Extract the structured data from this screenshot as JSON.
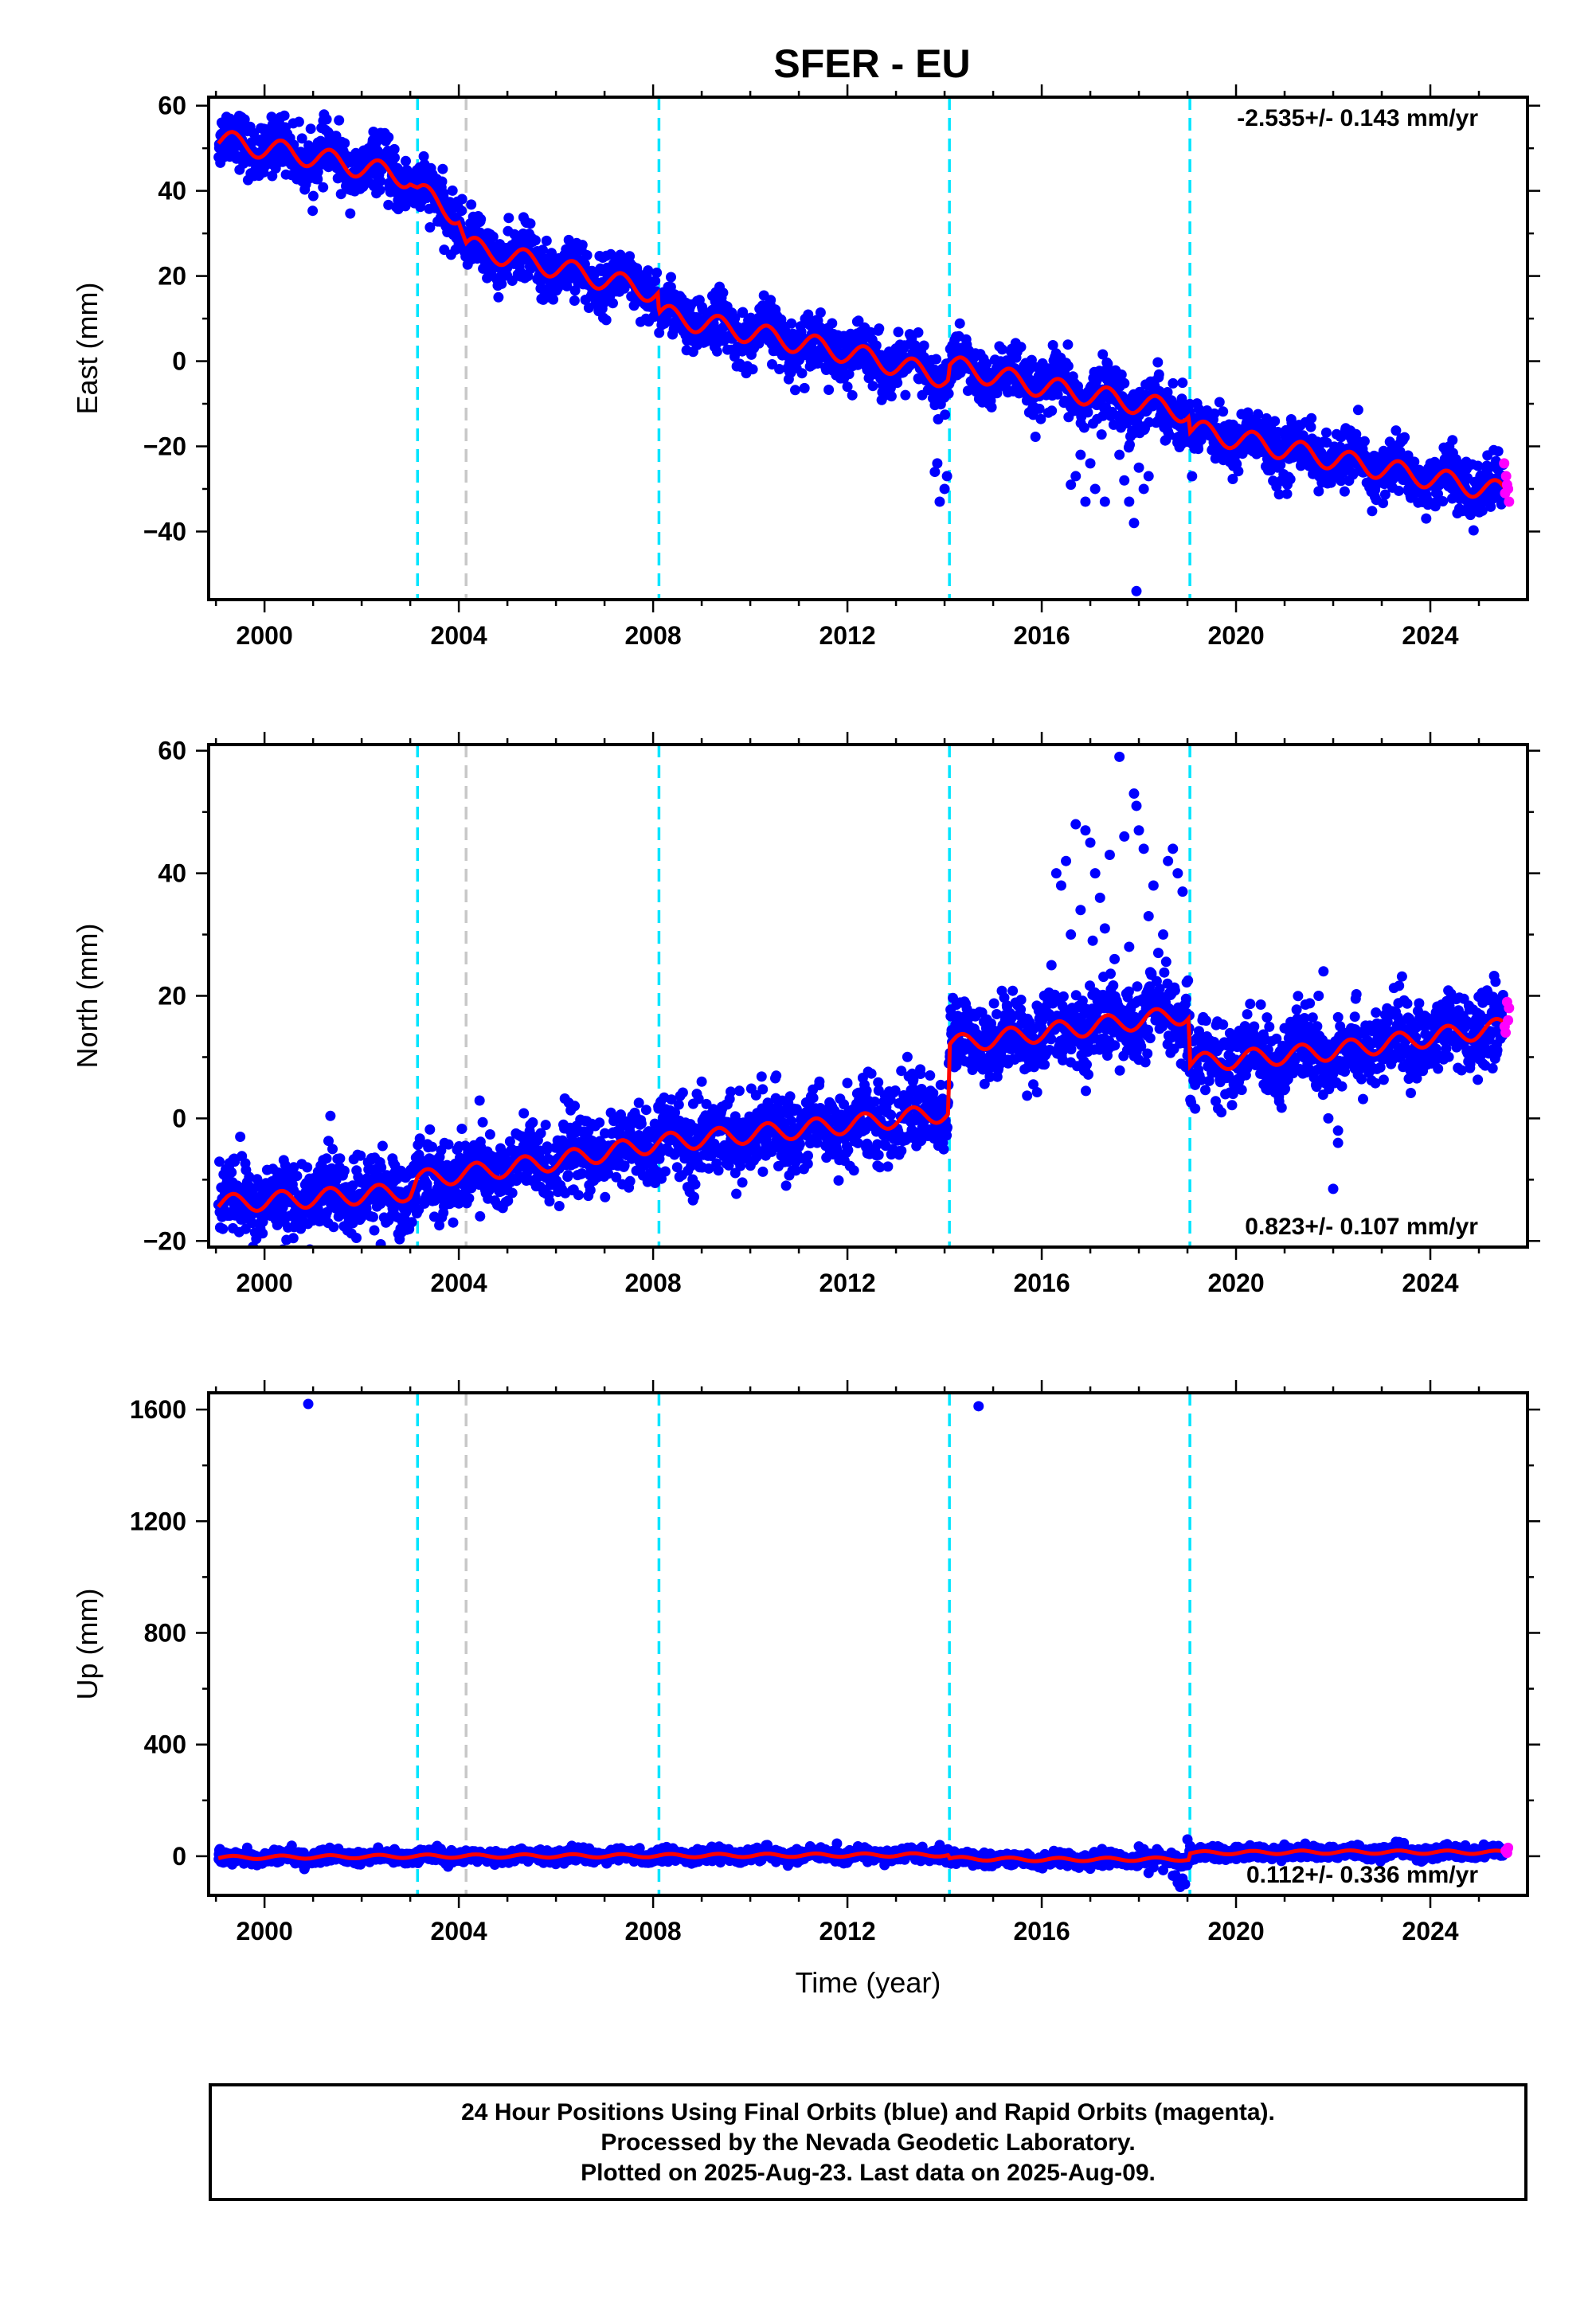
{
  "title": "SFER - EU",
  "footer": {
    "line1": "24 Hour Positions Using Final Orbits (blue) and Rapid Orbits (magenta).",
    "line2": "Processed by the Nevada Geodetic Laboratory.",
    "line3": "Plotted on 2025-Aug-23. Last data on 2025-Aug-09."
  },
  "colors": {
    "final_points": "#0000ff",
    "rapid_points": "#ff00ff",
    "model": "#ff0000",
    "equipment_change": "#00e5ff",
    "other_event": "#c8c8c8"
  },
  "chart_data": [
    {
      "type": "scatter",
      "component": "east",
      "ylabel": "East (mm)",
      "xlabel": "",
      "xlim": [
        1998.85,
        2026.0
      ],
      "ylim": [
        -56,
        62
      ],
      "xticks": [
        2000,
        2004,
        2008,
        2012,
        2016,
        2020,
        2024
      ],
      "yticks": [
        -40,
        -20,
        0,
        20,
        40,
        60
      ],
      "rate_text": "-2.535+/- 0.143 mm/yr",
      "rate_position": "top-right",
      "equipment_changes": [
        2003.15,
        2008.12,
        2014.1,
        2019.05
      ],
      "other_events": [
        2004.15
      ],
      "model_series": {
        "name": "model",
        "x": [
          1999.0,
          2001.0,
          2003.0,
          2003.15,
          2004.0,
          2004.15,
          2006.0,
          2008.1,
          2008.12,
          2012.0,
          2014.08,
          2014.1,
          2016.0,
          2019.03,
          2019.05,
          2022.0,
          2025.6
        ],
        "y": [
          52,
          48,
          43,
          40,
          34,
          27,
          22,
          16,
          11,
          2,
          -4,
          -1,
          -6,
          -12,
          -16,
          -23,
          -31
        ],
        "seasonal_amplitude": 2.5,
        "noise": 1.2
      },
      "point_series": {
        "name": "final",
        "density_per_year": 120,
        "scatter": 2.0
      },
      "outliers": [
        [
          2013.8,
          -26
        ],
        [
          2013.9,
          -33
        ],
        [
          2013.85,
          -24
        ],
        [
          2014.05,
          -27
        ],
        [
          2014.0,
          -30
        ],
        [
          2016.7,
          -27
        ],
        [
          2016.9,
          -33
        ],
        [
          2017.1,
          -30
        ],
        [
          2016.8,
          -22
        ],
        [
          2017.0,
          -24
        ],
        [
          2017.7,
          -28
        ],
        [
          2017.8,
          -33
        ],
        [
          2017.9,
          -38
        ],
        [
          2017.95,
          -54
        ],
        [
          2018.0,
          -25
        ],
        [
          2017.6,
          -22
        ],
        [
          2018.1,
          -30
        ],
        [
          2018.2,
          -27
        ],
        [
          2017.3,
          -33
        ],
        [
          2016.6,
          -29
        ],
        [
          2012.1,
          -8
        ],
        [
          2012.0,
          -6
        ]
      ],
      "rapid_points": [
        [
          2025.52,
          -24
        ],
        [
          2025.56,
          -27
        ],
        [
          2025.6,
          -30
        ],
        [
          2025.62,
          -33
        ],
        [
          2025.58,
          -29
        ],
        [
          2025.54,
          -31
        ]
      ]
    },
    {
      "type": "scatter",
      "component": "north",
      "ylabel": "North (mm)",
      "xlabel": "",
      "xlim": [
        1998.85,
        2026.0
      ],
      "ylim": [
        -21,
        61
      ],
      "xticks": [
        2000,
        2004,
        2008,
        2012,
        2016,
        2020,
        2024
      ],
      "yticks": [
        -20,
        0,
        20,
        40,
        60
      ],
      "rate_text": "0.823+/- 0.107 mm/yr",
      "rate_position": "bottom-right",
      "equipment_changes": [
        2003.15,
        2008.12,
        2014.1,
        2019.05
      ],
      "other_events": [
        2004.15
      ],
      "model_series": {
        "name": "model",
        "x": [
          1999.0,
          2003.0,
          2003.15,
          2006.0,
          2008.1,
          2008.12,
          2012.0,
          2014.08,
          2014.1,
          2016.0,
          2019.03,
          2019.05,
          2022.0,
          2025.6
        ],
        "y": [
          -14,
          -12,
          -10,
          -7,
          -4,
          -4,
          -1,
          1,
          12,
          14,
          17,
          9,
          11,
          15
        ],
        "seasonal_amplitude": 1.5,
        "noise": 1.3
      },
      "point_series": {
        "name": "final",
        "density_per_year": 120,
        "scatter": 1.8
      },
      "outliers": [
        [
          2016.3,
          40
        ],
        [
          2016.4,
          38
        ],
        [
          2016.5,
          42
        ],
        [
          2016.7,
          48
        ],
        [
          2016.9,
          47
        ],
        [
          2017.0,
          45
        ],
        [
          2017.1,
          40
        ],
        [
          2017.2,
          36
        ],
        [
          2017.4,
          43
        ],
        [
          2017.6,
          59
        ],
        [
          2017.7,
          46
        ],
        [
          2017.9,
          53
        ],
        [
          2017.95,
          51
        ],
        [
          2018.0,
          47
        ],
        [
          2018.1,
          44
        ],
        [
          2018.3,
          38
        ],
        [
          2018.6,
          42
        ],
        [
          2018.7,
          44
        ],
        [
          2018.8,
          40
        ],
        [
          2018.9,
          37
        ],
        [
          2016.6,
          30
        ],
        [
          2017.3,
          31
        ],
        [
          2017.5,
          26
        ],
        [
          2016.2,
          25
        ],
        [
          2017.8,
          28
        ],
        [
          2018.2,
          33
        ],
        [
          2018.5,
          30
        ],
        [
          2016.8,
          34
        ],
        [
          2017.05,
          29
        ],
        [
          2018.4,
          27
        ],
        [
          2009.0,
          6
        ],
        [
          2008.9,
          4
        ],
        [
          2013.5,
          8
        ],
        [
          2013.7,
          7
        ],
        [
          2021.8,
          24
        ],
        [
          2021.7,
          20
        ],
        [
          2022.1,
          -2
        ],
        [
          2022.1,
          -4
        ],
        [
          2022.0,
          -11.5
        ],
        [
          2021.9,
          0
        ],
        [
          2002.5,
          -17
        ],
        [
          2002.8,
          -18
        ],
        [
          1999.5,
          -3
        ],
        [
          2001.4,
          -5
        ]
      ],
      "rapid_points": [
        [
          2025.55,
          14
        ],
        [
          2025.6,
          16
        ],
        [
          2025.62,
          18
        ],
        [
          2025.58,
          19
        ],
        [
          2025.53,
          15
        ]
      ]
    },
    {
      "type": "scatter",
      "component": "up",
      "ylabel": "Up (mm)",
      "xlabel": "Time (year)",
      "xlim": [
        1998.85,
        2026.0
      ],
      "ylim": [
        -140,
        1660
      ],
      "xticks": [
        2000,
        2004,
        2008,
        2012,
        2016,
        2020,
        2024
      ],
      "yticks": [
        0,
        400,
        800,
        1200,
        1600
      ],
      "rate_text": "0.112+/- 0.336 mm/yr",
      "rate_position": "bottom-right",
      "equipment_changes": [
        2003.15,
        2008.12,
        2014.1,
        2019.05
      ],
      "other_events": [
        2004.15
      ],
      "model_series": {
        "name": "model",
        "x": [
          1999.0,
          2003.0,
          2008.0,
          2014.08,
          2014.1,
          2016.0,
          2019.03,
          2019.05,
          2022.0,
          2025.6
        ],
        "y": [
          -5,
          0,
          2,
          5,
          -8,
          -12,
          -10,
          12,
          15,
          14
        ],
        "seasonal_amplitude": 6,
        "noise": 5
      },
      "point_series": {
        "name": "final",
        "density_per_year": 120,
        "scatter": 6
      },
      "outliers": [
        [
          2000.9,
          1620
        ],
        [
          2014.7,
          1612
        ],
        [
          2018.0,
          35
        ],
        [
          2018.1,
          25
        ],
        [
          2013.9,
          40
        ],
        [
          2018.7,
          -70
        ],
        [
          2018.8,
          -95
        ],
        [
          2018.85,
          -110
        ],
        [
          2018.9,
          -80
        ],
        [
          2018.95,
          -100
        ],
        [
          2019.0,
          60
        ],
        [
          2018.5,
          -50
        ],
        [
          2018.3,
          -40
        ],
        [
          2018.2,
          -60
        ]
      ],
      "rapid_points": [
        [
          2025.55,
          20
        ],
        [
          2025.6,
          30
        ],
        [
          2025.58,
          12
        ]
      ]
    }
  ]
}
